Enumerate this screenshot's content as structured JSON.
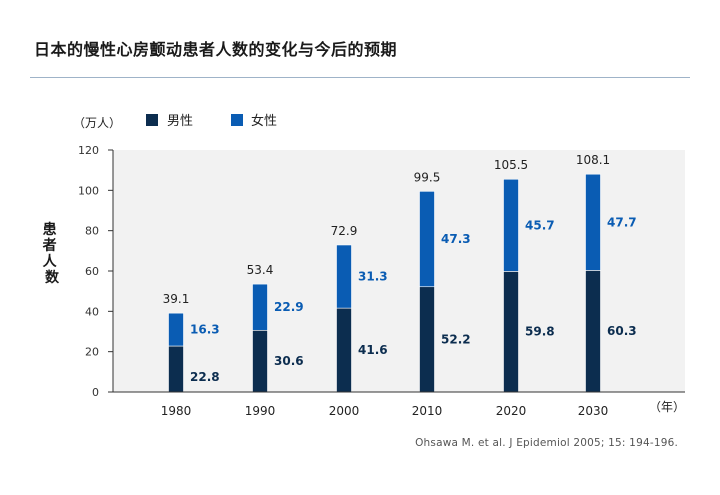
{
  "title": "日本的慢性心房颤动患者人数的变化与今后的预期",
  "source": "Ohsawa M. et al. J Epidemiol 2005; 15: 194-196.",
  "colors": {
    "male": "#0c2d4f",
    "female": "#0a5cb3",
    "plot_bg": "#f2f2f2"
  },
  "chart_data": {
    "type": "bar",
    "stacked": true,
    "categories": [
      "1980",
      "1990",
      "2000",
      "2010",
      "2020",
      "2030"
    ],
    "series": [
      {
        "name": "男性",
        "values": [
          22.8,
          30.6,
          41.6,
          52.2,
          59.8,
          60.3
        ]
      },
      {
        "name": "女性",
        "values": [
          16.3,
          22.9,
          31.3,
          47.3,
          45.7,
          47.7
        ]
      }
    ],
    "totals": [
      39.1,
      53.4,
      72.9,
      99.5,
      105.5,
      108.1
    ],
    "total_labels": [
      "39.1",
      "53.4",
      "72.9",
      "99.5",
      "105.5",
      "108.1"
    ],
    "male_labels": [
      "22.8",
      "30.6",
      "41.6",
      "52.2",
      "59.8",
      "60.3"
    ],
    "female_labels": [
      "16.3",
      "22.9",
      "31.3",
      "47.3",
      "45.7",
      "47.7"
    ],
    "ylabel": "患者人数",
    "yunit": "（万人）",
    "xunit": "（年）",
    "ylim": [
      0,
      120
    ],
    "yticks": [
      0,
      20,
      40,
      60,
      80,
      100,
      120
    ],
    "legend_position": "top",
    "grid": false
  }
}
